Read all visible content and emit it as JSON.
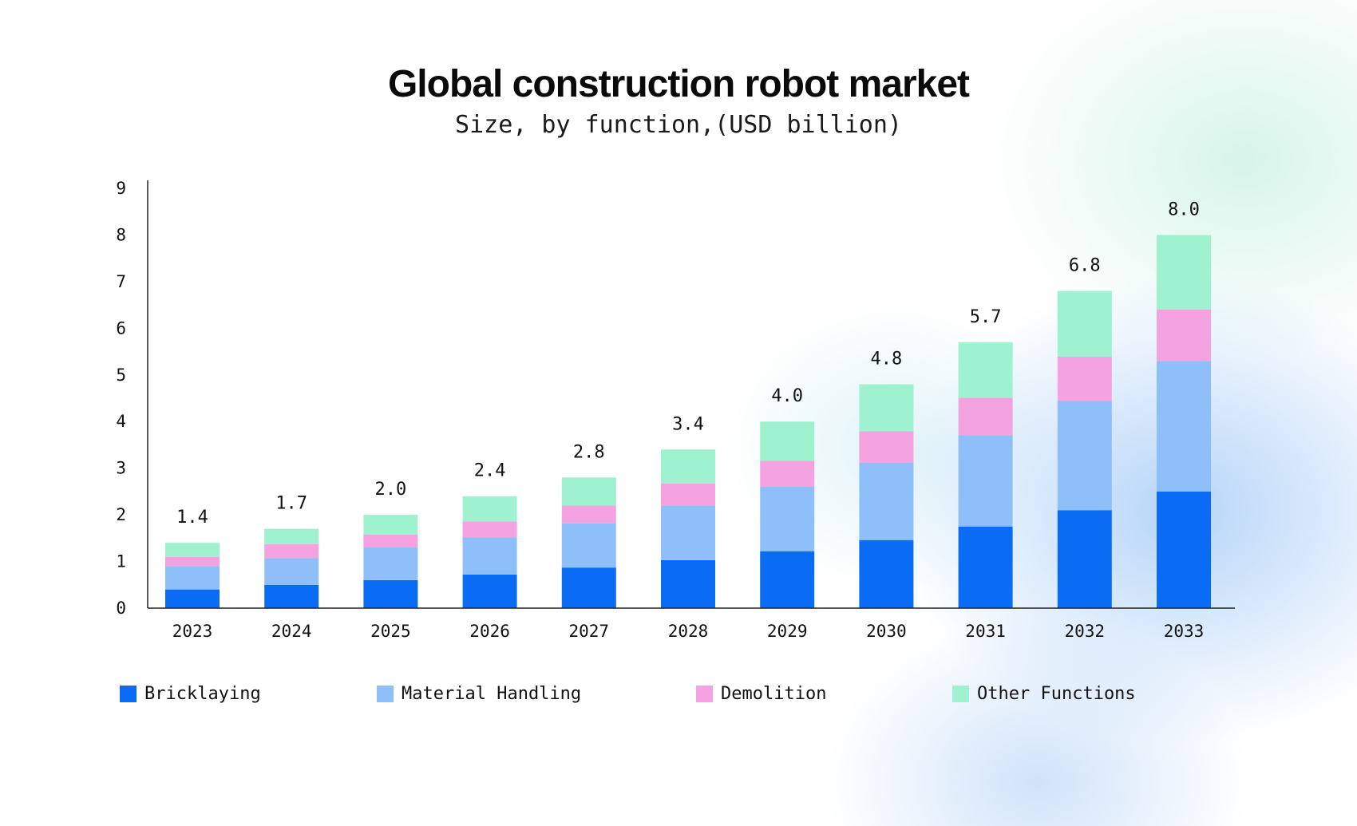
{
  "chart_data": {
    "type": "bar",
    "stacked": true,
    "title": "Global construction robot market",
    "subtitle": "Size, by function,(USD billion)",
    "xlabel": "",
    "ylabel": "",
    "ylim": [
      0,
      9
    ],
    "yticks": [
      "0",
      "1",
      "2",
      "3",
      "4",
      "5",
      "6",
      "7",
      "8",
      "9"
    ],
    "grid": false,
    "legend_position": "bottom",
    "categories": [
      "2023",
      "2024",
      "2025",
      "2026",
      "2027",
      "2028",
      "2029",
      "2030",
      "2031",
      "2032",
      "2033"
    ],
    "totals": [
      "1.4",
      "1.7",
      "2.0",
      "2.4",
      "2.8",
      "3.4",
      "4.0",
      "4.8",
      "5.7",
      "6.8",
      "8.0"
    ],
    "series": [
      {
        "name": "Bricklaying",
        "color": "#0a6cf5",
        "values": [
          0.4,
          0.5,
          0.6,
          0.72,
          0.87,
          1.03,
          1.22,
          1.46,
          1.75,
          2.1,
          2.5
        ]
      },
      {
        "name": "Material Handling",
        "color": "#8fbff8",
        "values": [
          0.5,
          0.57,
          0.7,
          0.8,
          0.95,
          1.16,
          1.38,
          1.66,
          1.96,
          2.34,
          2.8
        ]
      },
      {
        "name": "Demolition",
        "color": "#f4a3e0",
        "values": [
          0.2,
          0.3,
          0.28,
          0.34,
          0.38,
          0.48,
          0.56,
          0.67,
          0.8,
          0.95,
          1.1
        ]
      },
      {
        "name": "Other Functions",
        "color": "#9ef2cf",
        "values": [
          0.3,
          0.33,
          0.42,
          0.54,
          0.6,
          0.73,
          0.84,
          1.01,
          1.19,
          1.41,
          1.6
        ]
      }
    ]
  }
}
